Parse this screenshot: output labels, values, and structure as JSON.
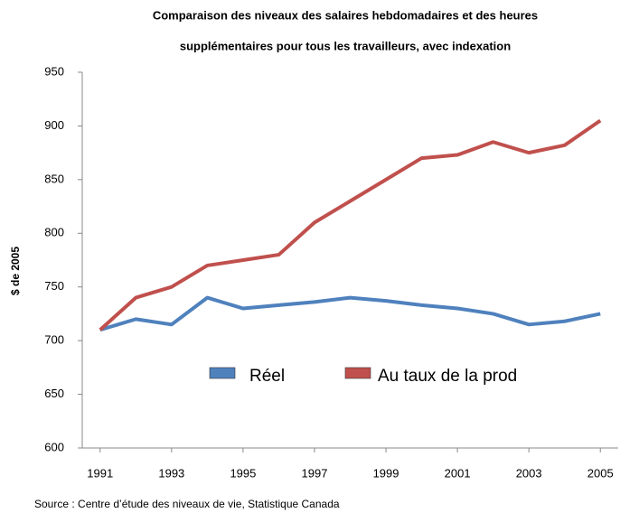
{
  "chart_data": {
    "type": "line",
    "title": [
      "Comparaison des niveaux des salaires hebdomadaires et des heures",
      "supplémentaires pour tous les travailleurs, avec indexation"
    ],
    "y_label": "$ de 2005",
    "source": "Source : Centre d’étude des niveaux de vie, Statistique Canada",
    "x": [
      1991,
      1992,
      1993,
      1994,
      1995,
      1996,
      1997,
      1998,
      1999,
      2000,
      2001,
      2002,
      2003,
      2004,
      2005
    ],
    "xlim": [
      1990.5,
      2005.5
    ],
    "xticks": [
      1991,
      1993,
      1995,
      1997,
      1999,
      2001,
      2003,
      2005
    ],
    "ylim": [
      600,
      950
    ],
    "yticks": [
      600,
      650,
      700,
      750,
      800,
      850,
      900,
      950
    ],
    "grid": false,
    "legend": "center",
    "series": [
      {
        "name": "Réel",
        "color": "#4f81bd",
        "values": [
          710,
          720,
          715,
          740,
          730,
          733,
          736,
          740,
          737,
          733,
          730,
          725,
          715,
          718,
          725
        ]
      },
      {
        "name": "Au taux de la prod",
        "color": "#c0504d",
        "values": [
          710,
          740,
          750,
          770,
          775,
          780,
          810,
          830,
          850,
          870,
          873,
          885,
          875,
          882,
          905
        ]
      }
    ]
  }
}
